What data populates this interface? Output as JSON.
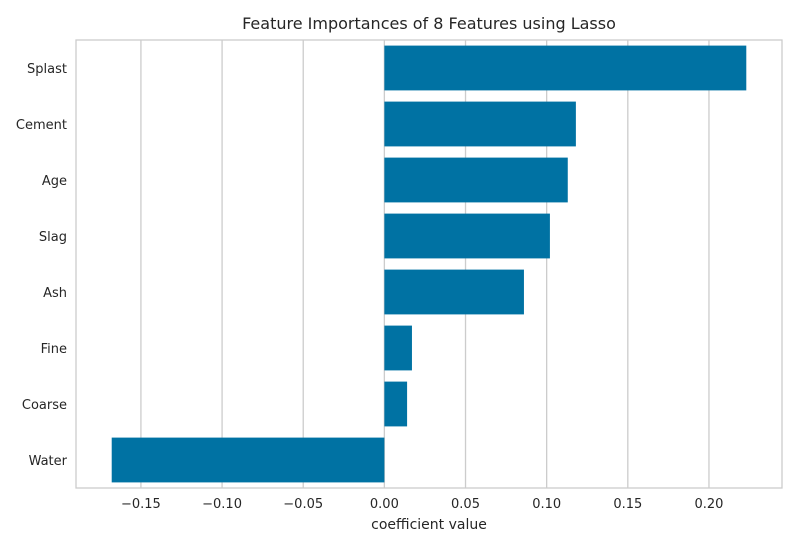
{
  "chart_data": {
    "type": "bar",
    "orientation": "horizontal",
    "title": "Feature Importances of 8 Features using Lasso",
    "xlabel": "coefficient value",
    "ylabel": "",
    "categories": [
      "Splast",
      "Cement",
      "Age",
      "Slag",
      "Ash",
      "Fine",
      "Coarse",
      "Water"
    ],
    "values": [
      0.223,
      0.118,
      0.113,
      0.102,
      0.086,
      0.017,
      0.014,
      -0.168
    ],
    "xlim": [
      -0.19,
      0.245
    ],
    "xticks": [
      -0.15,
      -0.1,
      -0.05,
      0.0,
      0.05,
      0.1,
      0.15,
      0.2
    ],
    "xtick_labels": [
      "−0.15",
      "−0.10",
      "−0.05",
      "0.00",
      "0.05",
      "0.10",
      "0.15",
      "0.20"
    ],
    "grid": "vertical",
    "bar_color": "#0072a3"
  }
}
